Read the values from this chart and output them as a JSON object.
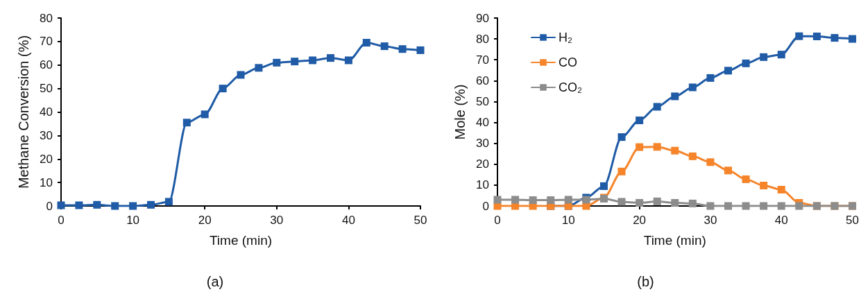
{
  "chart_data": [
    {
      "type": "line",
      "xlabel": "Time (min)",
      "ylabel": "Methane Conversion (%)",
      "annotations": [
        "(a)"
      ],
      "x": [
        0,
        2.5,
        5,
        7.5,
        10,
        12.5,
        15,
        17.5,
        20,
        22.5,
        25,
        27.5,
        30,
        32.5,
        35,
        37.5,
        40,
        42.5,
        45,
        47.5,
        50
      ],
      "series": [
        {
          "color": "#1f5ba6",
          "values": [
            0.3,
            0.3,
            0.5,
            0,
            0,
            0.5,
            1.8,
            35.5,
            39,
            50,
            55.8,
            58.8,
            61,
            61.5,
            62,
            63,
            62,
            69.5,
            68,
            66.8,
            66.3
          ]
        }
      ],
      "xlim": [
        0,
        50
      ],
      "xticks": [
        0,
        10,
        20,
        30,
        40,
        50
      ],
      "ylim": [
        0,
        80
      ],
      "yticks": [
        0,
        10,
        20,
        30,
        40,
        50,
        60,
        70,
        80
      ],
      "grid": false,
      "legend": false,
      "marker": "square",
      "line_style": "solid"
    },
    {
      "type": "line",
      "xlabel": "Time (min)",
      "ylabel": "Mole (%)",
      "annotations": [
        "(b)"
      ],
      "x": [
        0,
        2.5,
        5,
        7.5,
        10,
        12.5,
        15,
        17.5,
        20,
        22.5,
        25,
        27.5,
        30,
        32.5,
        35,
        37.5,
        40,
        42.5,
        45,
        47.5,
        50
      ],
      "series": [
        {
          "name": "H₂",
          "color": "#1f5ba6",
          "values": [
            null,
            null,
            null,
            0,
            0,
            4,
            9.5,
            33,
            41,
            47.5,
            52.5,
            56.8,
            61.3,
            64.8,
            68.3,
            71.3,
            72.5,
            81.3,
            81.2,
            80.5,
            80
          ]
        },
        {
          "name": "CO",
          "color": "#f5842a",
          "values": [
            0,
            0,
            0,
            0,
            0,
            0,
            4,
            16.5,
            28.2,
            28.3,
            26.5,
            23.8,
            21,
            17,
            12.8,
            9.8,
            7.8,
            1.5,
            0,
            0,
            0
          ]
        },
        {
          "name": "CO₂",
          "color": "#8c8c8c",
          "values": [
            3,
            3,
            2.8,
            2.8,
            3,
            3,
            3.5,
            2,
            1.5,
            2.2,
            1.5,
            1.2,
            0,
            0,
            0,
            0,
            0,
            0,
            0,
            0,
            0
          ]
        }
      ],
      "xlim": [
        0,
        50
      ],
      "xticks": [
        0,
        10,
        20,
        30,
        40,
        50
      ],
      "ylim": [
        0,
        90
      ],
      "yticks": [
        0,
        10,
        20,
        30,
        40,
        50,
        60,
        70,
        80,
        90
      ],
      "grid": false,
      "legend": "top left",
      "marker": "square",
      "line_style": "solid"
    }
  ]
}
